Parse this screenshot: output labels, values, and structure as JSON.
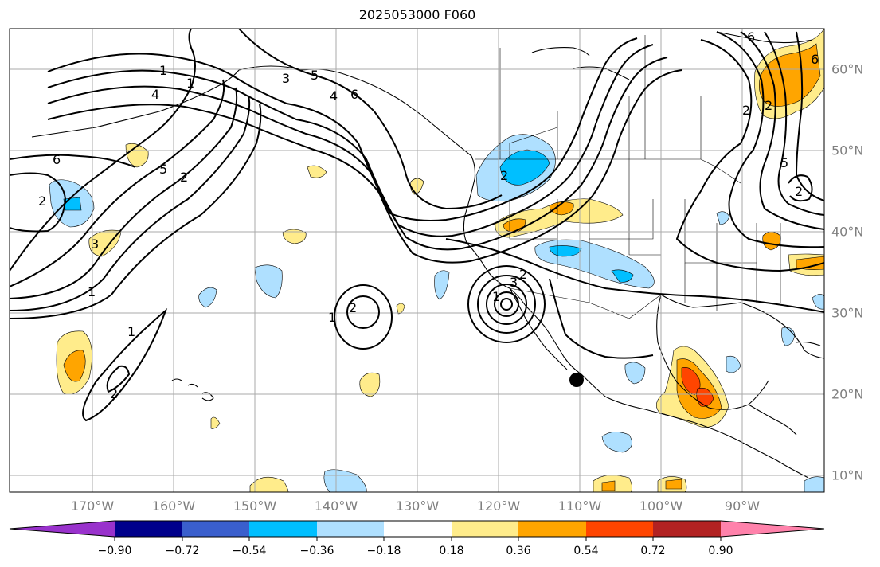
{
  "title": "2025053000 F060",
  "map": {
    "lat_labels": [
      "60°N",
      "50°N",
      "40°N",
      "30°N",
      "20°N",
      "10°N"
    ],
    "lon_labels": [
      "170°W",
      "160°W",
      "150°W",
      "140°W",
      "130°W",
      "120°W",
      "110°W",
      "100°W",
      "90°W"
    ],
    "contour_labels": [
      "1",
      "4",
      "1",
      "6",
      "5",
      "2",
      "3",
      "1",
      "1",
      "2",
      "2",
      "3",
      "5",
      "4",
      "6",
      "2",
      "2",
      "1",
      "3",
      "1",
      "2",
      "2",
      "6",
      "2",
      "5",
      "2",
      "6"
    ],
    "marker": "filled-circle",
    "colors": {
      "land_line": "#000000",
      "grid_line": "#aaaaaa",
      "contour_line": "#000000"
    }
  },
  "colorbar": {
    "tick_labels": [
      "−0.90",
      "−0.72",
      "−0.54",
      "−0.36",
      "−0.18",
      "0.18",
      "0.36",
      "0.54",
      "0.72",
      "0.90"
    ],
    "colors": [
      "#9932cc",
      "#00008b",
      "#3a5fcd",
      "#00bfff",
      "#afe0ff",
      "#ffffff",
      "#ffec8b",
      "#ffa500",
      "#ff4500",
      "#b22222",
      "#ff82ab"
    ]
  }
}
